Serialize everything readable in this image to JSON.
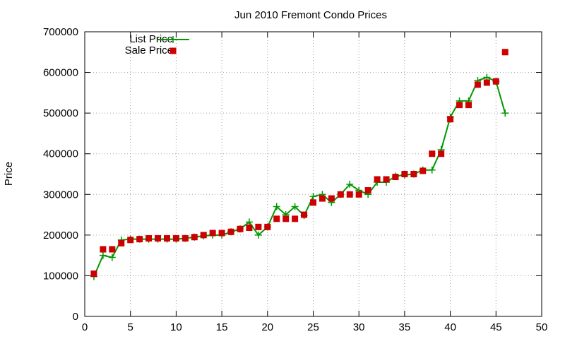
{
  "chart_data": {
    "type": "line",
    "title": "Jun 2010 Fremont Condo Prices",
    "xlabel": "",
    "ylabel": "Price",
    "xlim": [
      0,
      50
    ],
    "ylim": [
      0,
      700000
    ],
    "xticks": [
      0,
      5,
      10,
      15,
      20,
      25,
      30,
      35,
      40,
      45,
      50
    ],
    "yticks": [
      0,
      100000,
      200000,
      300000,
      400000,
      500000,
      600000,
      700000
    ],
    "grid": true,
    "legend_position": "top-left",
    "series": [
      {
        "name": "List Price",
        "style": "line with plus markers",
        "color": "#009900",
        "x": [
          1,
          2,
          3,
          4,
          5,
          6,
          7,
          8,
          9,
          10,
          11,
          12,
          13,
          14,
          15,
          16,
          17,
          18,
          19,
          20,
          21,
          22,
          23,
          24,
          25,
          26,
          27,
          28,
          29,
          30,
          31,
          32,
          33,
          34,
          35,
          36,
          37,
          38,
          39,
          40,
          41,
          42,
          43,
          44,
          45,
          46
        ],
        "y": [
          98000,
          150000,
          145000,
          188000,
          190000,
          190000,
          190000,
          190000,
          190000,
          190000,
          192000,
          195000,
          198000,
          200000,
          200000,
          208000,
          215000,
          232000,
          200000,
          220000,
          270000,
          250000,
          270000,
          248000,
          295000,
          300000,
          280000,
          300000,
          325000,
          310000,
          300000,
          330000,
          330000,
          345000,
          348000,
          350000,
          360000,
          360000,
          410000,
          490000,
          530000,
          530000,
          580000,
          588000,
          578000,
          500000
        ]
      },
      {
        "name": "Sale Price",
        "style": "square markers",
        "color": "#cc0000",
        "x": [
          1,
          2,
          3,
          4,
          5,
          6,
          7,
          8,
          9,
          10,
          11,
          12,
          13,
          14,
          15,
          16,
          17,
          18,
          19,
          20,
          21,
          22,
          23,
          24,
          25,
          26,
          27,
          28,
          29,
          30,
          31,
          32,
          33,
          34,
          35,
          36,
          37,
          38,
          39,
          40,
          41,
          42,
          43,
          44,
          45,
          46
        ],
        "y": [
          105000,
          165000,
          165000,
          180000,
          188000,
          190000,
          192000,
          192000,
          192000,
          192000,
          192000,
          195000,
          200000,
          205000,
          205000,
          208000,
          215000,
          218000,
          220000,
          220000,
          240000,
          240000,
          240000,
          250000,
          280000,
          290000,
          290000,
          300000,
          300000,
          300000,
          310000,
          337000,
          337000,
          343000,
          350000,
          350000,
          358000,
          400000,
          400000,
          485000,
          520000,
          520000,
          570000,
          575000,
          578000,
          650000
        ]
      }
    ]
  }
}
